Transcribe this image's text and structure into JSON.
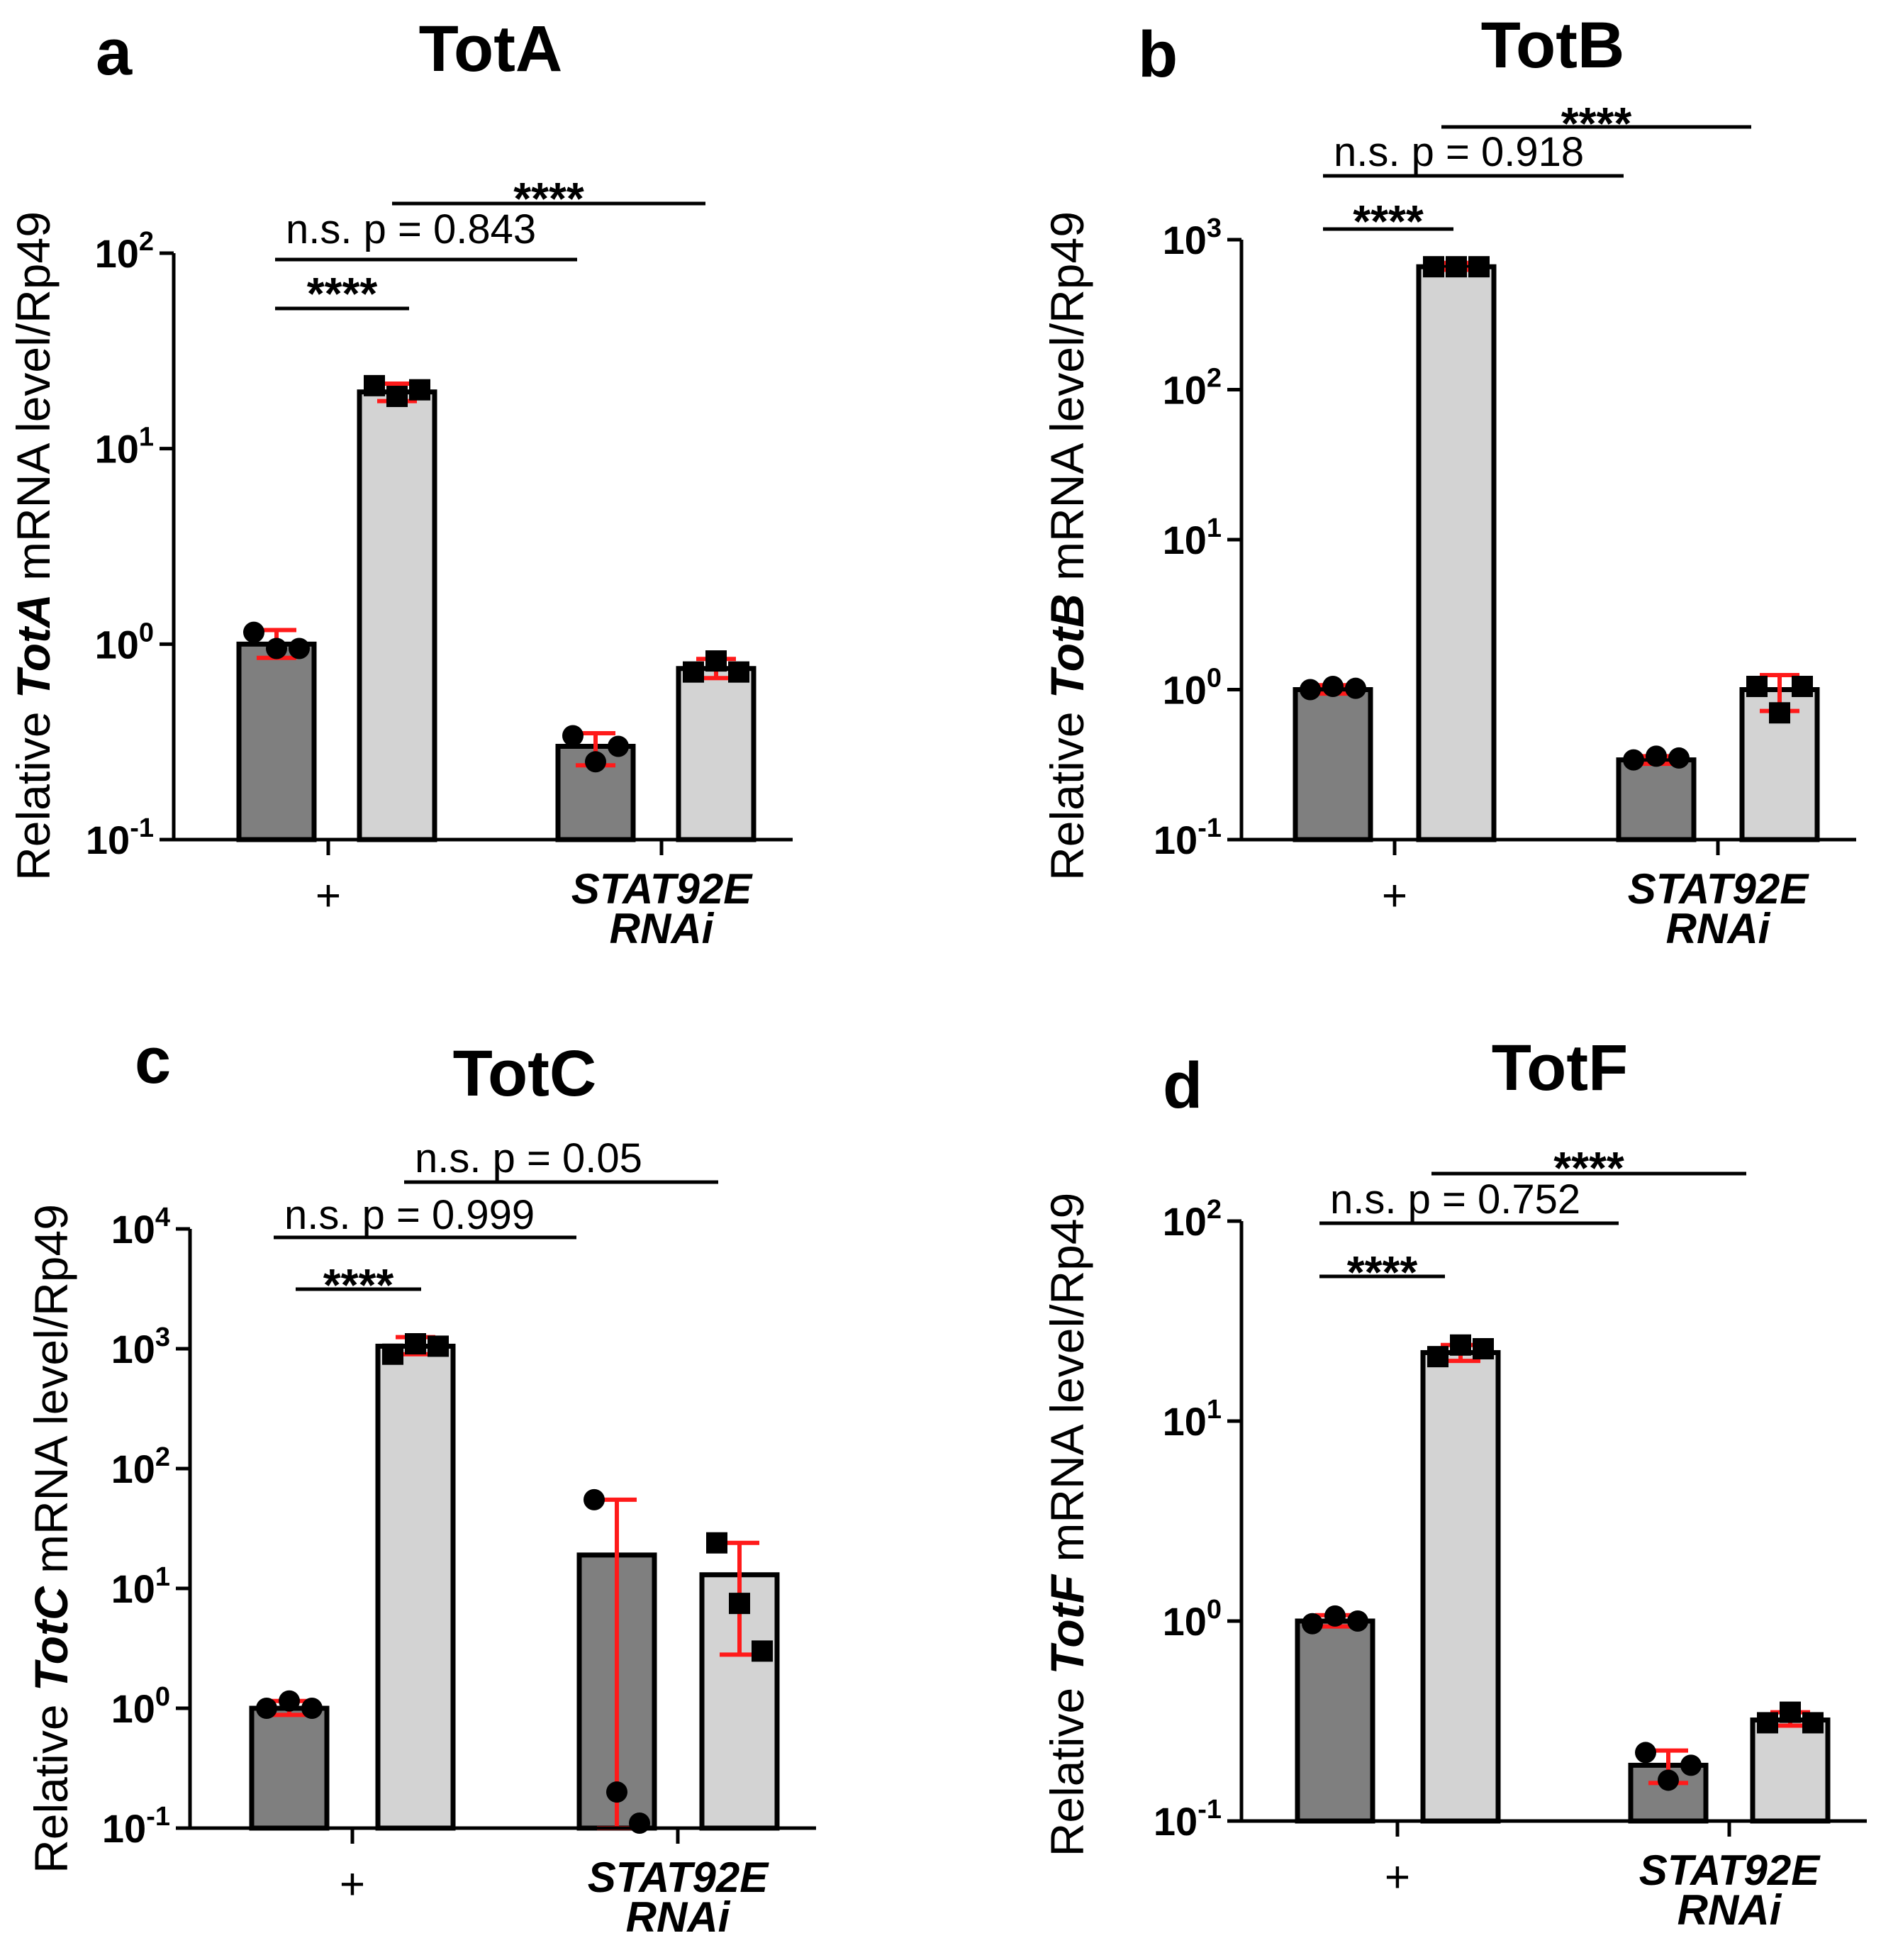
{
  "colors": {
    "dark_bar": "#7f7f7f",
    "light_bar": "#d3d3d3",
    "error_bar": "#ff1a1a",
    "text": "#000000"
  },
  "chart_data": [
    {
      "panel": "a",
      "type": "bar",
      "title": "TotA",
      "ylabel_prefix": "Relative ",
      "ylabel_gene": "TotA",
      "ylabel_suffix": " mRNA level/Rp49",
      "yscale": "log",
      "ylim": [
        0.1,
        100
      ],
      "yticks": [
        {
          "base": "10",
          "exp": "2"
        },
        {
          "base": "10",
          "exp": "1"
        },
        {
          "base": "10",
          "exp": "0"
        },
        {
          "base": "10",
          "exp": "-1"
        }
      ],
      "groups": [
        {
          "label": "+",
          "italic": false,
          "bars": [
            {
              "shade": "dark",
              "marker": "circle",
              "value": 1.0,
              "err": [
                0.85,
                1.18
              ],
              "points": [
                1.15,
                0.95,
                0.95
              ]
            },
            {
              "shade": "light",
              "marker": "square",
              "value": 19.5,
              "err": [
                17.5,
                21.5
              ],
              "points": [
                21,
                18.5,
                20
              ]
            }
          ]
        },
        {
          "label": "STAT92E\nRNAi",
          "italic": true,
          "bars": [
            {
              "shade": "dark",
              "marker": "circle",
              "value": 0.3,
              "err": [
                0.24,
                0.35
              ],
              "points": [
                0.34,
                0.25,
                0.3
              ]
            },
            {
              "shade": "light",
              "marker": "square",
              "value": 0.75,
              "err": [
                0.67,
                0.84
              ],
              "points": [
                0.72,
                0.82,
                0.72
              ]
            }
          ]
        }
      ],
      "comparisons": [
        {
          "text": "****",
          "type": "stars",
          "from_bar": 0,
          "to_bar": 1,
          "level": 0
        },
        {
          "text": "n.s. p = 0.843",
          "type": "ns",
          "from_bar": 0,
          "to_bar": 2,
          "level": 1
        },
        {
          "text": "****",
          "type": "stars",
          "from_bar": 1,
          "to_bar": 3,
          "level": 2
        }
      ]
    },
    {
      "panel": "b",
      "type": "bar",
      "title": "TotB",
      "ylabel_prefix": "Relative ",
      "ylabel_gene": "TotB",
      "ylabel_suffix": " mRNA level/Rp49",
      "yscale": "log",
      "ylim": [
        0.1,
        1000
      ],
      "yticks": [
        {
          "base": "10",
          "exp": "3"
        },
        {
          "base": "10",
          "exp": "2"
        },
        {
          "base": "10",
          "exp": "1"
        },
        {
          "base": "10",
          "exp": "0"
        },
        {
          "base": "10",
          "exp": "-1"
        }
      ],
      "groups": [
        {
          "label": "+",
          "italic": false,
          "bars": [
            {
              "shade": "dark",
              "marker": "circle",
              "value": 1.0,
              "err": [
                0.94,
                1.07
              ],
              "points": [
                1.0,
                1.05,
                1.02
              ]
            },
            {
              "shade": "light",
              "marker": "square",
              "value": 660,
              "err": [
                630,
                700
              ],
              "points": [
                660,
                660,
                660
              ]
            }
          ]
        },
        {
          "label": "STAT92E\nRNAi",
          "italic": true,
          "bars": [
            {
              "shade": "dark",
              "marker": "circle",
              "value": 0.34,
              "err": [
                0.32,
                0.36
              ],
              "points": [
                0.34,
                0.36,
                0.35
              ]
            },
            {
              "shade": "light",
              "marker": "square",
              "value": 1.0,
              "err": [
                0.72,
                1.25
              ],
              "points": [
                1.05,
                0.7,
                1.05
              ]
            }
          ]
        }
      ],
      "comparisons": [
        {
          "text": "****",
          "type": "stars",
          "from_bar": 0,
          "to_bar": 1,
          "level": 0
        },
        {
          "text": "n.s. p = 0.918",
          "type": "ns",
          "from_bar": 0,
          "to_bar": 2,
          "level": 1
        },
        {
          "text": "****",
          "type": "stars",
          "from_bar": 1,
          "to_bar": 3,
          "level": 2
        }
      ]
    },
    {
      "panel": "c",
      "type": "bar",
      "title": "TotC",
      "ylabel_prefix": "Relative ",
      "ylabel_gene": "TotC",
      "ylabel_suffix": " mRNA level/Rp49",
      "yscale": "log",
      "ylim": [
        0.1,
        10000
      ],
      "yticks": [
        {
          "base": "10",
          "exp": "4"
        },
        {
          "base": "10",
          "exp": "3"
        },
        {
          "base": "10",
          "exp": "2"
        },
        {
          "base": "10",
          "exp": "1"
        },
        {
          "base": "10",
          "exp": "0"
        },
        {
          "base": "10",
          "exp": "-1"
        }
      ],
      "groups": [
        {
          "label": "+",
          "italic": false,
          "bars": [
            {
              "shade": "dark",
              "marker": "circle",
              "value": 1.0,
              "err": [
                0.88,
                1.15
              ],
              "points": [
                1.0,
                1.15,
                1.0
              ]
            },
            {
              "shade": "light",
              "marker": "square",
              "value": 1050,
              "err": [
                900,
                1250
              ],
              "points": [
                900,
                1100,
                1050
              ]
            }
          ]
        },
        {
          "label": "STAT92E\nRNAi",
          "italic": true,
          "bars": [
            {
              "shade": "dark",
              "marker": "circle",
              "value": 19,
              "err": [
                0.1,
                55
              ],
              "points": [
                55,
                0.2,
                0.11
              ]
            },
            {
              "shade": "light",
              "marker": "square",
              "value": 13,
              "err": [
                2.8,
                24
              ],
              "points": [
                24,
                7.5,
                3.0
              ]
            }
          ]
        }
      ],
      "comparisons": [
        {
          "text": "****",
          "type": "stars",
          "from_bar": 0,
          "to_bar": 1,
          "level": 0
        },
        {
          "text": "n.s. p = 0.999",
          "type": "ns",
          "from_bar": 0,
          "to_bar": 2,
          "level": 1
        },
        {
          "text": "n.s. p = 0.05",
          "type": "ns",
          "from_bar": 1,
          "to_bar": 3,
          "level": 2
        }
      ]
    },
    {
      "panel": "d",
      "type": "bar",
      "title": "TotF",
      "ylabel_prefix": "Relative ",
      "ylabel_gene": "TotF",
      "ylabel_suffix": " mRNA level/Rp49",
      "yscale": "log",
      "ylim": [
        0.1,
        100
      ],
      "yticks": [
        {
          "base": "10",
          "exp": "2"
        },
        {
          "base": "10",
          "exp": "1"
        },
        {
          "base": "10",
          "exp": "0"
        },
        {
          "base": "10",
          "exp": "-1"
        }
      ],
      "groups": [
        {
          "label": "+",
          "italic": false,
          "bars": [
            {
              "shade": "dark",
              "marker": "circle",
              "value": 1.0,
              "err": [
                0.94,
                1.07
              ],
              "points": [
                0.97,
                1.06,
                1.0
              ]
            },
            {
              "shade": "light",
              "marker": "square",
              "value": 22,
              "err": [
                20,
                24
              ],
              "points": [
                21,
                24,
                23
              ]
            }
          ]
        },
        {
          "label": "STAT92E\nRNAi",
          "italic": true,
          "bars": [
            {
              "shade": "dark",
              "marker": "circle",
              "value": 0.19,
              "err": [
                0.155,
                0.225
              ],
              "points": [
                0.22,
                0.16,
                0.19
              ]
            },
            {
              "shade": "light",
              "marker": "square",
              "value": 0.32,
              "err": [
                0.3,
                0.35
              ],
              "points": [
                0.31,
                0.35,
                0.31
              ]
            }
          ]
        }
      ],
      "comparisons": [
        {
          "text": "****",
          "type": "stars",
          "from_bar": 0,
          "to_bar": 1,
          "level": 0
        },
        {
          "text": "n.s. p = 0.752",
          "type": "ns",
          "from_bar": 0,
          "to_bar": 2,
          "level": 1
        },
        {
          "text": "****",
          "type": "stars",
          "from_bar": 1,
          "to_bar": 3,
          "level": 2
        }
      ]
    }
  ]
}
